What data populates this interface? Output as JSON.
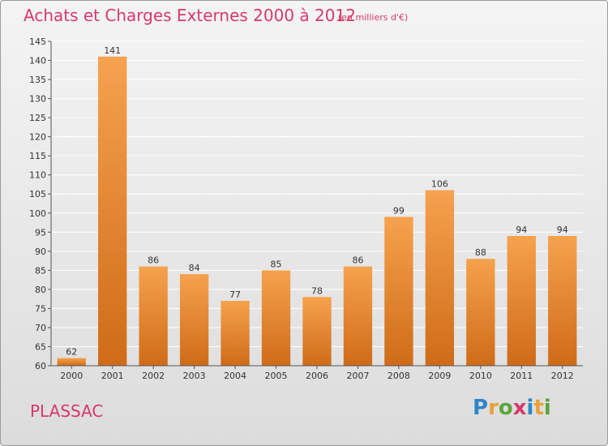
{
  "title": "Achats et Charges Externes 2000 à 2012",
  "subtitle": "(en milliers d'€)",
  "place": "PLASSAC",
  "logo": {
    "letters": [
      "P",
      "r",
      "o",
      "x",
      "i",
      "t",
      "i"
    ],
    "colors": [
      "#2e86c8",
      "#e8a13a",
      "#5aa43c",
      "#d63a6a",
      "#2e86c8",
      "#e8a13a",
      "#5aa43c"
    ]
  },
  "colors": {
    "bar_light": "#f6a24e",
    "bar_dark": "#cf6b18",
    "title": "#d63a6a",
    "grid": "#ffffff"
  },
  "chart_data": {
    "type": "bar",
    "title": "Achats et Charges Externes 2000 à 2012",
    "subtitle": "(en milliers d'€)",
    "xlabel": "",
    "ylabel": "",
    "categories": [
      "2000",
      "2001",
      "2002",
      "2003",
      "2004",
      "2005",
      "2006",
      "2007",
      "2008",
      "2009",
      "2010",
      "2011",
      "2012"
    ],
    "values": [
      62,
      141,
      86,
      84,
      77,
      85,
      78,
      86,
      99,
      106,
      88,
      94,
      94
    ],
    "ylim": [
      60,
      145
    ],
    "yticks": [
      60,
      65,
      70,
      75,
      80,
      85,
      90,
      95,
      100,
      105,
      110,
      115,
      120,
      125,
      130,
      135,
      140,
      145
    ],
    "grid": true,
    "data_labels": true
  }
}
